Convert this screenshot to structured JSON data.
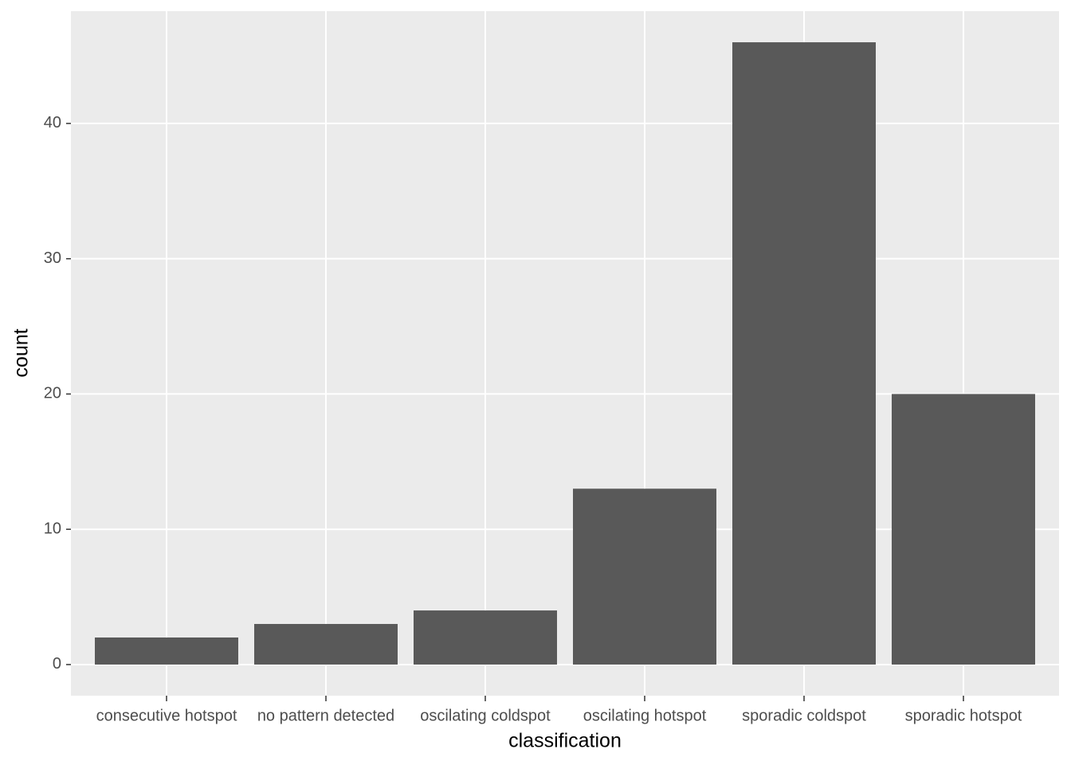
{
  "chart_data": {
    "type": "bar",
    "x_label": "classification",
    "y_label": "count",
    "categories": [
      "consecutive hotspot",
      "no pattern detected",
      "oscilating coldspot",
      "oscilating hotspot",
      "sporadic coldspot",
      "sporadic hotspot"
    ],
    "values": [
      2,
      3,
      4,
      13,
      46,
      20
    ],
    "color": "#595959",
    "ylim": [
      -2.3,
      48.3
    ],
    "yticks": [
      0,
      10,
      20,
      30,
      40
    ],
    "grid": true
  }
}
